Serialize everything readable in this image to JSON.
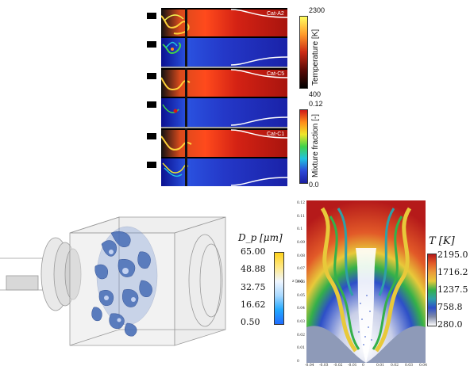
{
  "top_panels": {
    "labels": [
      "Cat-A2",
      "Cat-C5",
      "Cat-C1"
    ]
  },
  "temperature_bar": {
    "title": "Temperature [K]",
    "max_label": "2300",
    "min_label": "400",
    "colors": [
      "#ffff60",
      "#ff9a2a",
      "#cc2a14",
      "#5a0a06",
      "#000000"
    ]
  },
  "mixture_bar": {
    "title": "Mixture fraction [-]",
    "max_label": "0.12",
    "min_label": "0.0",
    "colors": [
      "#d01818",
      "#ff8c1a",
      "#f0e62a",
      "#40d24a",
      "#21c2e0",
      "#2c49d8",
      "#1b1fa0"
    ]
  },
  "particle_bar": {
    "title": "D_p [μm]",
    "ticks": [
      "65.00",
      "48.88",
      "32.75",
      "16.62",
      "0.50"
    ],
    "colors": [
      "#ffd21a",
      "#ffe884",
      "#f0f6ff",
      "#a9d9ff",
      "#23a9ff",
      "#1f6cff"
    ]
  },
  "flame_plot": {
    "title": "T [K]",
    "ticks": [
      "2195.0",
      "1716.2",
      "1237.5",
      "758.8",
      "280.0"
    ],
    "colors": [
      "#b51a1a",
      "#e25a28",
      "#ea9a3a",
      "#e8c93a",
      "#34b04a",
      "#2fa0a8",
      "#2d4fc8",
      "#808aa8",
      "#ffffff"
    ],
    "yticks": [
      "0.12",
      "0.11",
      "0.1",
      "0.09",
      "0.08",
      "0.07",
      "0.06",
      "0.05",
      "0.04",
      "0.03",
      "0.02",
      "0.01",
      "0"
    ],
    "xticks": [
      "-0.04",
      "-0.03",
      "-0.02",
      "-0.01",
      "0",
      "0.01",
      "0.02",
      "0.03",
      "0.04"
    ],
    "ylabel": "z [m]"
  }
}
